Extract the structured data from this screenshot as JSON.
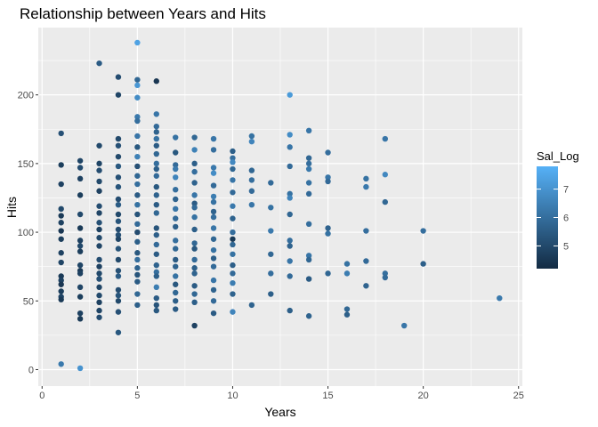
{
  "chart_data": {
    "type": "scatter",
    "title": "Relationship between Years and Hits",
    "xlabel": "Years",
    "ylabel": "Hits",
    "xlim": [
      -0.2,
      25.2
    ],
    "ylim": [
      -12,
      249
    ],
    "xticks": [
      0,
      5,
      10,
      15,
      20,
      25
    ],
    "yticks": [
      0,
      50,
      100,
      150,
      200
    ],
    "grid": true,
    "legend": {
      "title": "Sal_Log",
      "position": "right",
      "type": "colorbar",
      "range": [
        4.2,
        7.8
      ],
      "ticks": [
        5,
        6,
        7
      ],
      "colors": {
        "low": "#132B43",
        "high": "#56B1F7"
      }
    },
    "points": [
      {
        "x": 1,
        "y": 172,
        "c": 5.2
      },
      {
        "x": 1,
        "y": 149,
        "c": 4.7
      },
      {
        "x": 1,
        "y": 135,
        "c": 4.8
      },
      {
        "x": 1,
        "y": 117,
        "c": 5.0
      },
      {
        "x": 1,
        "y": 112,
        "c": 4.6
      },
      {
        "x": 1,
        "y": 107,
        "c": 4.8
      },
      {
        "x": 1,
        "y": 101,
        "c": 4.5
      },
      {
        "x": 1,
        "y": 95,
        "c": 4.7
      },
      {
        "x": 1,
        "y": 85,
        "c": 4.8
      },
      {
        "x": 1,
        "y": 78,
        "c": 4.9
      },
      {
        "x": 1,
        "y": 68,
        "c": 4.6
      },
      {
        "x": 1,
        "y": 65,
        "c": 4.8
      },
      {
        "x": 1,
        "y": 62,
        "c": 4.5
      },
      {
        "x": 1,
        "y": 57,
        "c": 4.7
      },
      {
        "x": 1,
        "y": 53,
        "c": 4.9
      },
      {
        "x": 1,
        "y": 51,
        "c": 4.6
      },
      {
        "x": 1,
        "y": 4,
        "c": 6.3
      },
      {
        "x": 2,
        "y": 152,
        "c": 4.9
      },
      {
        "x": 2,
        "y": 147,
        "c": 5.1
      },
      {
        "x": 2,
        "y": 139,
        "c": 4.8
      },
      {
        "x": 2,
        "y": 127,
        "c": 4.7
      },
      {
        "x": 2,
        "y": 113,
        "c": 5.0
      },
      {
        "x": 2,
        "y": 103,
        "c": 4.6
      },
      {
        "x": 2,
        "y": 94,
        "c": 4.8
      },
      {
        "x": 2,
        "y": 90,
        "c": 5.0
      },
      {
        "x": 2,
        "y": 86,
        "c": 4.7
      },
      {
        "x": 2,
        "y": 76,
        "c": 4.9
      },
      {
        "x": 2,
        "y": 72,
        "c": 4.6
      },
      {
        "x": 2,
        "y": 70,
        "c": 4.8
      },
      {
        "x": 2,
        "y": 60,
        "c": 4.9
      },
      {
        "x": 2,
        "y": 53,
        "c": 4.7
      },
      {
        "x": 2,
        "y": 41,
        "c": 4.8
      },
      {
        "x": 2,
        "y": 37,
        "c": 4.6
      },
      {
        "x": 2,
        "y": 1,
        "c": 7.0
      },
      {
        "x": 3,
        "y": 223,
        "c": 5.5
      },
      {
        "x": 3,
        "y": 163,
        "c": 5.0
      },
      {
        "x": 3,
        "y": 150,
        "c": 4.9
      },
      {
        "x": 3,
        "y": 145,
        "c": 5.1
      },
      {
        "x": 3,
        "y": 137,
        "c": 5.0
      },
      {
        "x": 3,
        "y": 130,
        "c": 4.8
      },
      {
        "x": 3,
        "y": 119,
        "c": 5.1
      },
      {
        "x": 3,
        "y": 114,
        "c": 4.9
      },
      {
        "x": 3,
        "y": 107,
        "c": 5.2
      },
      {
        "x": 3,
        "y": 102,
        "c": 4.8
      },
      {
        "x": 3,
        "y": 96,
        "c": 5.0
      },
      {
        "x": 3,
        "y": 90,
        "c": 4.9
      },
      {
        "x": 3,
        "y": 80,
        "c": 5.1
      },
      {
        "x": 3,
        "y": 75,
        "c": 4.8
      },
      {
        "x": 3,
        "y": 70,
        "c": 5.0
      },
      {
        "x": 3,
        "y": 66,
        "c": 5.2
      },
      {
        "x": 3,
        "y": 60,
        "c": 4.9
      },
      {
        "x": 3,
        "y": 54,
        "c": 5.0
      },
      {
        "x": 3,
        "y": 49,
        "c": 4.8
      },
      {
        "x": 3,
        "y": 43,
        "c": 4.9
      },
      {
        "x": 3,
        "y": 38,
        "c": 5.1
      },
      {
        "x": 4,
        "y": 213,
        "c": 5.1
      },
      {
        "x": 4,
        "y": 200,
        "c": 4.9
      },
      {
        "x": 4,
        "y": 168,
        "c": 5.0
      },
      {
        "x": 4,
        "y": 163,
        "c": 5.2
      },
      {
        "x": 4,
        "y": 155,
        "c": 5.0
      },
      {
        "x": 4,
        "y": 148,
        "c": 5.4
      },
      {
        "x": 4,
        "y": 140,
        "c": 5.2
      },
      {
        "x": 4,
        "y": 133,
        "c": 5.3
      },
      {
        "x": 4,
        "y": 124,
        "c": 5.1
      },
      {
        "x": 4,
        "y": 120,
        "c": 5.5
      },
      {
        "x": 4,
        "y": 113,
        "c": 5.0
      },
      {
        "x": 4,
        "y": 108,
        "c": 5.3
      },
      {
        "x": 4,
        "y": 102,
        "c": 5.1
      },
      {
        "x": 4,
        "y": 98,
        "c": 5.2
      },
      {
        "x": 4,
        "y": 95,
        "c": 4.9
      },
      {
        "x": 4,
        "y": 88,
        "c": 5.3
      },
      {
        "x": 4,
        "y": 80,
        "c": 5.0
      },
      {
        "x": 4,
        "y": 72,
        "c": 5.2
      },
      {
        "x": 4,
        "y": 68,
        "c": 5.5
      },
      {
        "x": 4,
        "y": 58,
        "c": 5.1
      },
      {
        "x": 4,
        "y": 54,
        "c": 5.3
      },
      {
        "x": 4,
        "y": 50,
        "c": 5.0
      },
      {
        "x": 4,
        "y": 42,
        "c": 5.2
      },
      {
        "x": 4,
        "y": 27,
        "c": 5.4
      },
      {
        "x": 5,
        "y": 238,
        "c": 7.4
      },
      {
        "x": 5,
        "y": 211,
        "c": 5.8
      },
      {
        "x": 5,
        "y": 207,
        "c": 7.1
      },
      {
        "x": 5,
        "y": 198,
        "c": 6.8
      },
      {
        "x": 5,
        "y": 184,
        "c": 6.3
      },
      {
        "x": 5,
        "y": 181,
        "c": 6.0
      },
      {
        "x": 5,
        "y": 170,
        "c": 6.2
      },
      {
        "x": 5,
        "y": 162,
        "c": 5.4
      },
      {
        "x": 5,
        "y": 155,
        "c": 6.5
      },
      {
        "x": 5,
        "y": 148,
        "c": 5.2
      },
      {
        "x": 5,
        "y": 141,
        "c": 5.8
      },
      {
        "x": 5,
        "y": 135,
        "c": 6.0
      },
      {
        "x": 5,
        "y": 127,
        "c": 5.5
      },
      {
        "x": 5,
        "y": 120,
        "c": 6.1
      },
      {
        "x": 5,
        "y": 113,
        "c": 5.3
      },
      {
        "x": 5,
        "y": 106,
        "c": 5.9
      },
      {
        "x": 5,
        "y": 100,
        "c": 5.1
      },
      {
        "x": 5,
        "y": 93,
        "c": 5.6
      },
      {
        "x": 5,
        "y": 85,
        "c": 5.4
      },
      {
        "x": 5,
        "y": 80,
        "c": 6.0
      },
      {
        "x": 5,
        "y": 74,
        "c": 5.7
      },
      {
        "x": 5,
        "y": 69,
        "c": 5.3
      },
      {
        "x": 5,
        "y": 64,
        "c": 5.5
      },
      {
        "x": 5,
        "y": 55,
        "c": 5.8
      },
      {
        "x": 5,
        "y": 47,
        "c": 5.6
      },
      {
        "x": 6,
        "y": 210,
        "c": 4.5
      },
      {
        "x": 6,
        "y": 186,
        "c": 6.2
      },
      {
        "x": 6,
        "y": 177,
        "c": 5.9
      },
      {
        "x": 6,
        "y": 173,
        "c": 5.7
      },
      {
        "x": 6,
        "y": 168,
        "c": 6.1
      },
      {
        "x": 6,
        "y": 163,
        "c": 5.5
      },
      {
        "x": 6,
        "y": 157,
        "c": 5.8
      },
      {
        "x": 6,
        "y": 150,
        "c": 6.0
      },
      {
        "x": 6,
        "y": 146,
        "c": 5.6
      },
      {
        "x": 6,
        "y": 141,
        "c": 5.9
      },
      {
        "x": 6,
        "y": 133,
        "c": 5.4
      },
      {
        "x": 6,
        "y": 127,
        "c": 5.7
      },
      {
        "x": 6,
        "y": 120,
        "c": 5.5
      },
      {
        "x": 6,
        "y": 114,
        "c": 5.8
      },
      {
        "x": 6,
        "y": 103,
        "c": 5.3
      },
      {
        "x": 6,
        "y": 98,
        "c": 5.6
      },
      {
        "x": 6,
        "y": 91,
        "c": 5.9
      },
      {
        "x": 6,
        "y": 84,
        "c": 5.5
      },
      {
        "x": 6,
        "y": 76,
        "c": 5.7
      },
      {
        "x": 6,
        "y": 71,
        "c": 6.0
      },
      {
        "x": 6,
        "y": 68,
        "c": 5.6
      },
      {
        "x": 6,
        "y": 60,
        "c": 6.4
      },
      {
        "x": 6,
        "y": 52,
        "c": 5.5
      },
      {
        "x": 6,
        "y": 47,
        "c": 5.3
      },
      {
        "x": 6,
        "y": 43,
        "c": 5.4
      },
      {
        "x": 7,
        "y": 169,
        "c": 6.1
      },
      {
        "x": 7,
        "y": 158,
        "c": 5.4
      },
      {
        "x": 7,
        "y": 149,
        "c": 5.9
      },
      {
        "x": 7,
        "y": 146,
        "c": 6.3
      },
      {
        "x": 7,
        "y": 140,
        "c": 6.6
      },
      {
        "x": 7,
        "y": 131,
        "c": 6.0
      },
      {
        "x": 7,
        "y": 124,
        "c": 5.7
      },
      {
        "x": 7,
        "y": 117,
        "c": 6.2
      },
      {
        "x": 7,
        "y": 110,
        "c": 5.9
      },
      {
        "x": 7,
        "y": 104,
        "c": 5.6
      },
      {
        "x": 7,
        "y": 94,
        "c": 6.0
      },
      {
        "x": 7,
        "y": 88,
        "c": 5.8
      },
      {
        "x": 7,
        "y": 80,
        "c": 5.5
      },
      {
        "x": 7,
        "y": 75,
        "c": 5.7
      },
      {
        "x": 7,
        "y": 68,
        "c": 6.1
      },
      {
        "x": 7,
        "y": 62,
        "c": 5.4
      },
      {
        "x": 7,
        "y": 56,
        "c": 5.8
      },
      {
        "x": 7,
        "y": 50,
        "c": 5.6
      },
      {
        "x": 7,
        "y": 44,
        "c": 5.5
      },
      {
        "x": 8,
        "y": 169,
        "c": 5.8
      },
      {
        "x": 8,
        "y": 160,
        "c": 6.5
      },
      {
        "x": 8,
        "y": 150,
        "c": 5.6
      },
      {
        "x": 8,
        "y": 144,
        "c": 6.0
      },
      {
        "x": 8,
        "y": 136,
        "c": 5.7
      },
      {
        "x": 8,
        "y": 127,
        "c": 6.2
      },
      {
        "x": 8,
        "y": 121,
        "c": 5.5
      },
      {
        "x": 8,
        "y": 118,
        "c": 5.9
      },
      {
        "x": 8,
        "y": 111,
        "c": 6.1
      },
      {
        "x": 8,
        "y": 102,
        "c": 5.6
      },
      {
        "x": 8,
        "y": 92,
        "c": 5.8
      },
      {
        "x": 8,
        "y": 88,
        "c": 5.4
      },
      {
        "x": 8,
        "y": 80,
        "c": 5.9
      },
      {
        "x": 8,
        "y": 74,
        "c": 5.6
      },
      {
        "x": 8,
        "y": 70,
        "c": 5.7
      },
      {
        "x": 8,
        "y": 61,
        "c": 5.5
      },
      {
        "x": 8,
        "y": 55,
        "c": 5.8
      },
      {
        "x": 8,
        "y": 49,
        "c": 5.6
      },
      {
        "x": 8,
        "y": 32,
        "c": 4.8
      },
      {
        "x": 9,
        "y": 168,
        "c": 6.2
      },
      {
        "x": 9,
        "y": 160,
        "c": 6.0
      },
      {
        "x": 9,
        "y": 147,
        "c": 6.3
      },
      {
        "x": 9,
        "y": 143,
        "c": 6.8
      },
      {
        "x": 9,
        "y": 134,
        "c": 5.9
      },
      {
        "x": 9,
        "y": 126,
        "c": 6.4
      },
      {
        "x": 9,
        "y": 122,
        "c": 6.1
      },
      {
        "x": 9,
        "y": 115,
        "c": 5.7
      },
      {
        "x": 9,
        "y": 111,
        "c": 6.0
      },
      {
        "x": 9,
        "y": 103,
        "c": 6.2
      },
      {
        "x": 9,
        "y": 95,
        "c": 5.8
      },
      {
        "x": 9,
        "y": 87,
        "c": 6.1
      },
      {
        "x": 9,
        "y": 81,
        "c": 5.6
      },
      {
        "x": 9,
        "y": 75,
        "c": 5.9
      },
      {
        "x": 9,
        "y": 65,
        "c": 6.2
      },
      {
        "x": 9,
        "y": 58,
        "c": 5.7
      },
      {
        "x": 9,
        "y": 50,
        "c": 5.9
      },
      {
        "x": 9,
        "y": 41,
        "c": 5.5
      },
      {
        "x": 10,
        "y": 159,
        "c": 5.6
      },
      {
        "x": 10,
        "y": 154,
        "c": 6.0
      },
      {
        "x": 10,
        "y": 151,
        "c": 6.7
      },
      {
        "x": 10,
        "y": 146,
        "c": 5.8
      },
      {
        "x": 10,
        "y": 138,
        "c": 6.2
      },
      {
        "x": 10,
        "y": 129,
        "c": 5.9
      },
      {
        "x": 10,
        "y": 119,
        "c": 6.3
      },
      {
        "x": 10,
        "y": 110,
        "c": 5.7
      },
      {
        "x": 10,
        "y": 100,
        "c": 6.0
      },
      {
        "x": 10,
        "y": 95,
        "c": 4.6
      },
      {
        "x": 10,
        "y": 91,
        "c": 5.8
      },
      {
        "x": 10,
        "y": 84,
        "c": 6.1
      },
      {
        "x": 10,
        "y": 76,
        "c": 5.6
      },
      {
        "x": 10,
        "y": 70,
        "c": 5.9
      },
      {
        "x": 10,
        "y": 63,
        "c": 6.4
      },
      {
        "x": 10,
        "y": 55,
        "c": 5.7
      },
      {
        "x": 10,
        "y": 42,
        "c": 6.6
      },
      {
        "x": 11,
        "y": 170,
        "c": 6.1
      },
      {
        "x": 11,
        "y": 166,
        "c": 6.6
      },
      {
        "x": 11,
        "y": 145,
        "c": 5.8
      },
      {
        "x": 11,
        "y": 138,
        "c": 6.0
      },
      {
        "x": 11,
        "y": 130,
        "c": 5.9
      },
      {
        "x": 11,
        "y": 120,
        "c": 6.2
      },
      {
        "x": 11,
        "y": 47,
        "c": 5.7
      },
      {
        "x": 12,
        "y": 136,
        "c": 5.9
      },
      {
        "x": 12,
        "y": 118,
        "c": 6.1
      },
      {
        "x": 12,
        "y": 101,
        "c": 6.3
      },
      {
        "x": 12,
        "y": 84,
        "c": 5.8
      },
      {
        "x": 12,
        "y": 70,
        "c": 6.0
      },
      {
        "x": 12,
        "y": 55,
        "c": 5.6
      },
      {
        "x": 13,
        "y": 200,
        "c": 7.2
      },
      {
        "x": 13,
        "y": 171,
        "c": 6.8
      },
      {
        "x": 13,
        "y": 162,
        "c": 6.2
      },
      {
        "x": 13,
        "y": 148,
        "c": 5.9
      },
      {
        "x": 13,
        "y": 128,
        "c": 6.1
      },
      {
        "x": 13,
        "y": 125,
        "c": 6.6
      },
      {
        "x": 13,
        "y": 113,
        "c": 5.8
      },
      {
        "x": 13,
        "y": 94,
        "c": 6.0
      },
      {
        "x": 13,
        "y": 90,
        "c": 5.7
      },
      {
        "x": 13,
        "y": 79,
        "c": 6.2
      },
      {
        "x": 13,
        "y": 68,
        "c": 5.9
      },
      {
        "x": 13,
        "y": 43,
        "c": 5.6
      },
      {
        "x": 14,
        "y": 174,
        "c": 6.2
      },
      {
        "x": 14,
        "y": 154,
        "c": 5.8
      },
      {
        "x": 14,
        "y": 150,
        "c": 6.0
      },
      {
        "x": 14,
        "y": 146,
        "c": 6.3
      },
      {
        "x": 14,
        "y": 136,
        "c": 6.1
      },
      {
        "x": 14,
        "y": 128,
        "c": 5.9
      },
      {
        "x": 14,
        "y": 106,
        "c": 6.0
      },
      {
        "x": 14,
        "y": 83,
        "c": 6.2
      },
      {
        "x": 14,
        "y": 80,
        "c": 5.8
      },
      {
        "x": 14,
        "y": 66,
        "c": 5.5
      },
      {
        "x": 14,
        "y": 39,
        "c": 5.7
      },
      {
        "x": 15,
        "y": 158,
        "c": 6.0
      },
      {
        "x": 15,
        "y": 140,
        "c": 6.2
      },
      {
        "x": 15,
        "y": 137,
        "c": 5.9
      },
      {
        "x": 15,
        "y": 103,
        "c": 5.7
      },
      {
        "x": 15,
        "y": 99,
        "c": 6.1
      },
      {
        "x": 15,
        "y": 70,
        "c": 5.8
      },
      {
        "x": 16,
        "y": 77,
        "c": 6.1
      },
      {
        "x": 16,
        "y": 70,
        "c": 6.4
      },
      {
        "x": 16,
        "y": 44,
        "c": 5.8
      },
      {
        "x": 16,
        "y": 40,
        "c": 5.6
      },
      {
        "x": 17,
        "y": 139,
        "c": 6.1
      },
      {
        "x": 17,
        "y": 133,
        "c": 6.3
      },
      {
        "x": 17,
        "y": 101,
        "c": 6.0
      },
      {
        "x": 17,
        "y": 79,
        "c": 5.9
      },
      {
        "x": 17,
        "y": 61,
        "c": 5.7
      },
      {
        "x": 18,
        "y": 168,
        "c": 6.2
      },
      {
        "x": 18,
        "y": 142,
        "c": 6.7
      },
      {
        "x": 18,
        "y": 122,
        "c": 5.8
      },
      {
        "x": 18,
        "y": 70,
        "c": 6.0
      },
      {
        "x": 18,
        "y": 67,
        "c": 5.9
      },
      {
        "x": 19,
        "y": 32,
        "c": 6.2
      },
      {
        "x": 20,
        "y": 101,
        "c": 6.0
      },
      {
        "x": 20,
        "y": 77,
        "c": 5.6
      },
      {
        "x": 24,
        "y": 52,
        "c": 6.3
      }
    ]
  }
}
